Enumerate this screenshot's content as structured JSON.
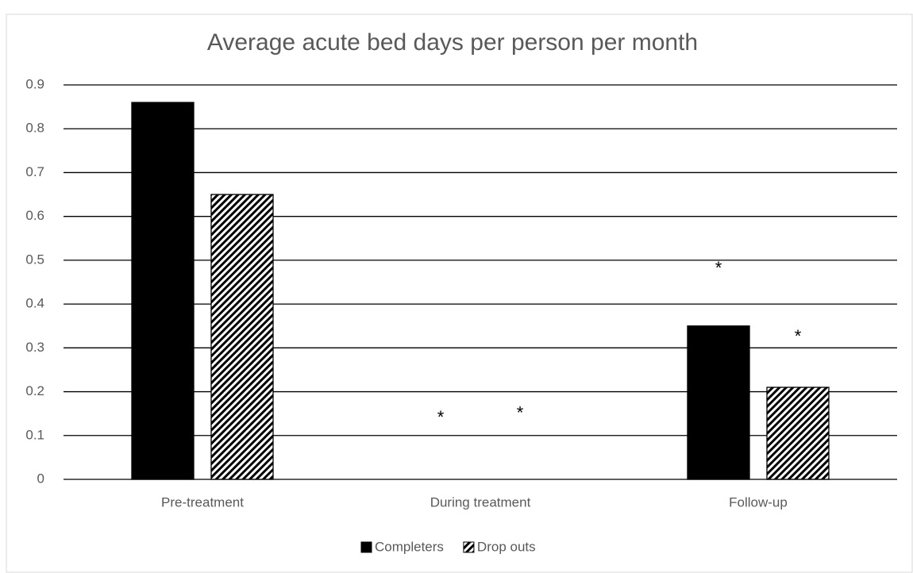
{
  "chart_data": {
    "type": "bar",
    "title": "Average acute bed days per person per month",
    "categories": [
      "Pre-treatment",
      "During treatment",
      "Follow-up"
    ],
    "series": [
      {
        "name": "Completers",
        "color": "#000000",
        "values": [
          0.86,
          0,
          0.35
        ]
      },
      {
        "name": "Drop outs",
        "color": "#000000",
        "hatch": true,
        "values": [
          0.65,
          0,
          0.21
        ]
      }
    ],
    "ylim": [
      0,
      0.9
    ],
    "yticks": [
      0,
      0.1,
      0.2,
      0.3,
      0.4,
      0.5,
      0.6,
      0.7,
      0.8,
      0.9
    ],
    "grid": true,
    "legend": "bottom",
    "annotations": [
      {
        "text": "*",
        "x": "During treatment",
        "series": "Completers",
        "y": 0.15
      },
      {
        "text": "*",
        "x": "During treatment",
        "series": "Drop outs",
        "y": 0.16
      },
      {
        "text": "*",
        "x": "Follow-up",
        "series": "Completers",
        "y": 0.49
      },
      {
        "text": "*",
        "x": "Follow-up",
        "series": "Drop outs",
        "y": 0.335
      }
    ]
  }
}
